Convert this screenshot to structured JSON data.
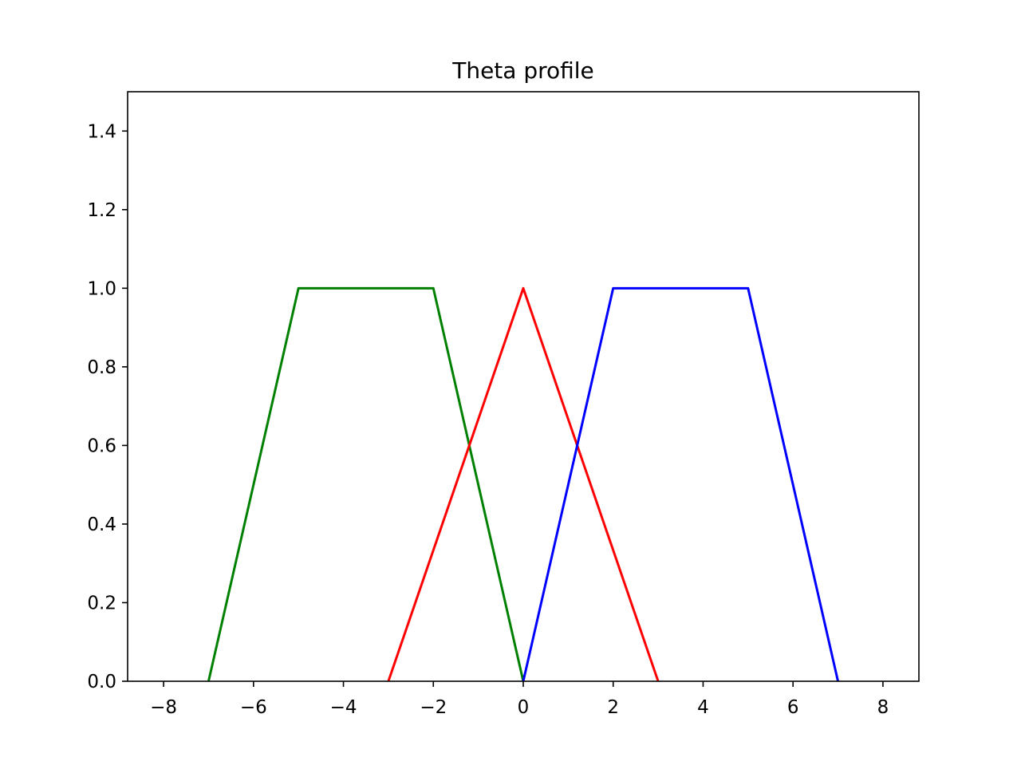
{
  "chart_data": {
    "type": "line",
    "title": "Theta profile",
    "xlabel": "",
    "ylabel": "",
    "xlim": [
      -8.8,
      8.8
    ],
    "ylim": [
      0.0,
      1.5
    ],
    "xticks": [
      -8,
      -6,
      -4,
      -2,
      0,
      2,
      4,
      6,
      8
    ],
    "xtick_labels": [
      "−8",
      "−6",
      "−4",
      "−2",
      "0",
      "2",
      "4",
      "6",
      "8"
    ],
    "yticks": [
      0.0,
      0.2,
      0.4,
      0.6,
      0.8,
      1.0,
      1.2,
      1.4
    ],
    "ytick_labels": [
      "0.0",
      "0.2",
      "0.4",
      "0.6",
      "0.8",
      "1.0",
      "1.2",
      "1.4"
    ],
    "grid": false,
    "legend": "none",
    "series": [
      {
        "color": "#008000",
        "x": [
          -7,
          -5,
          -2,
          0
        ],
        "y": [
          0.0,
          1.0,
          1.0,
          0.0
        ]
      },
      {
        "color": "#ff0000",
        "x": [
          -3,
          0,
          3
        ],
        "y": [
          0.0,
          1.0,
          0.0
        ]
      },
      {
        "color": "#0000ff",
        "x": [
          0,
          2,
          5,
          7
        ],
        "y": [
          0.0,
          1.0,
          1.0,
          0.0
        ]
      }
    ]
  }
}
